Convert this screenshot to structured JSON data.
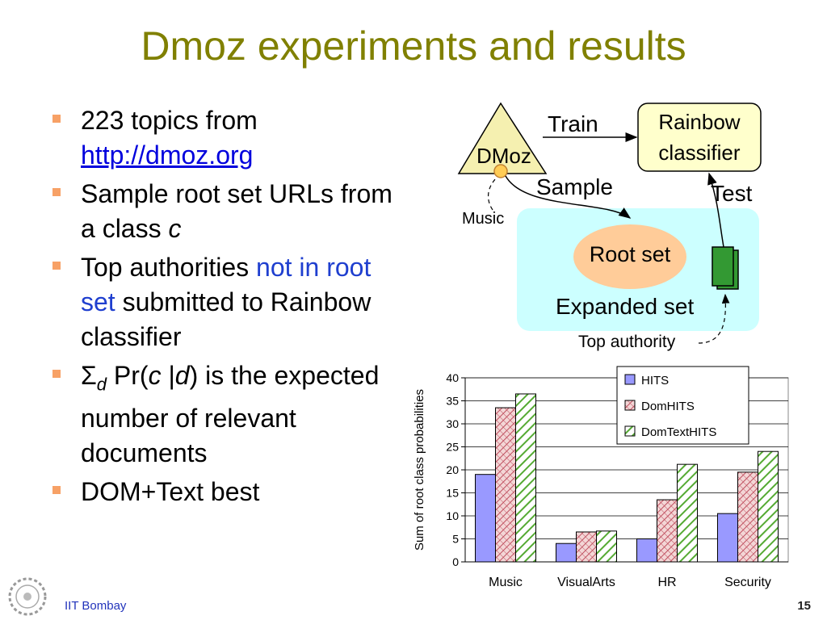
{
  "slide": {
    "title": "Dmoz experiments and results",
    "page_number": "15",
    "org": "IIT Bombay"
  },
  "bullets": {
    "b1_text": "223 topics from",
    "b1_link": "http://dmoz.org",
    "b2_text": "Sample root set URLs from a class ",
    "b2_var": "c",
    "b3_pre": "Top authorities ",
    "b3_highlight": "not in root set",
    "b3_post": " submitted to Rainbow classifier",
    "b4_sigma": "Σ",
    "b4_sub": "d",
    "b4_pr": " Pr(",
    "b4_c": "c",
    "b4_bar": " |",
    "b4_d": "d",
    "b4_post": ") is the expected number of relevant documents",
    "b5_text": "DOM+Text best"
  },
  "diagram": {
    "dmoz": "DMoz",
    "train": "Train",
    "rainbow_line1": "Rainbow",
    "rainbow_line2": "classifier",
    "sample": "Sample",
    "test": "Test",
    "music": "Music",
    "root_set": "Root set",
    "expanded_set": "Expanded set",
    "top_authority": "Top authority",
    "colors": {
      "triangle": "#f5f0b0",
      "rainbow_box": "#ffffcc",
      "expanded_bg": "#ccffff",
      "root_oval": "#ffcc99",
      "doc": "#339933"
    }
  },
  "chart_data": {
    "type": "bar",
    "categories": [
      "Music",
      "VisualArts",
      "HR",
      "Security"
    ],
    "series": [
      {
        "name": "HITS",
        "values": [
          19,
          4,
          5,
          10.5
        ],
        "color": "#9999ff",
        "pattern": "solid"
      },
      {
        "name": "DomHITS",
        "values": [
          33.5,
          6.5,
          13.5,
          19.5
        ],
        "color": "#cc6677",
        "pattern": "crosshatch"
      },
      {
        "name": "DomTextHITS",
        "values": [
          36.5,
          6.7,
          21.2,
          24
        ],
        "color": "#66aa44",
        "pattern": "diagonal"
      }
    ],
    "title": "",
    "xlabel": "",
    "ylabel": "Sum of root class probabilities",
    "ylim": [
      0,
      40
    ],
    "yticks": [
      0,
      5,
      10,
      15,
      20,
      25,
      30,
      35,
      40
    ],
    "grid": true,
    "legend": "top-right"
  }
}
